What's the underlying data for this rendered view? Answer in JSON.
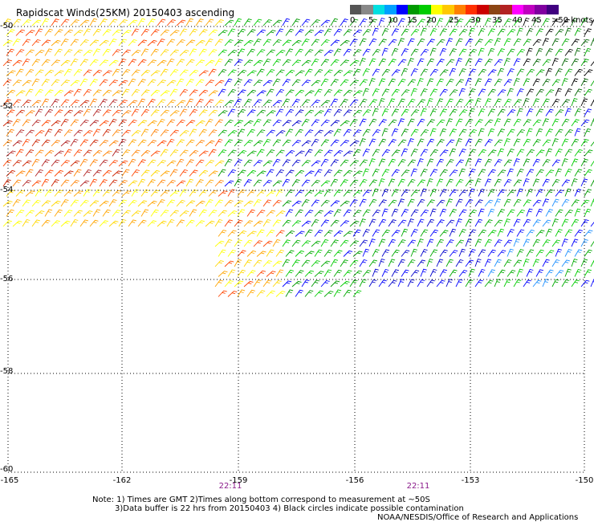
{
  "title": "Rapidscat Winds(25KM) 20150403 ascending",
  "color_scale": {
    "colors": [
      "#555555",
      "#888888",
      "#00e0e0",
      "#00a0ff",
      "#0000ff",
      "#009900",
      "#00cc00",
      "#ffff00",
      "#ffc800",
      "#ff8000",
      "#ff3000",
      "#cc0000",
      "#8b4513",
      "#b22222",
      "#ff00ff",
      "#c000c0",
      "#8000a0",
      "#400080"
    ],
    "labels": [
      "0",
      "5",
      "10",
      "15",
      "20",
      "25",
      "30",
      "35",
      "40",
      "45",
      ">50 knots"
    ]
  },
  "lat_labels": [
    "-50",
    "-52",
    "-54",
    "-56",
    "-58",
    "-60"
  ],
  "lon_labels": [
    "-165",
    "-162",
    "-159",
    "-156",
    "-153",
    "-150"
  ],
  "time_labels": [
    "22:11",
    "22:11"
  ],
  "notes": [
    "Note: 1) Times are GMT 2)Times along bottom correspond to measurement at ~50S",
    "3)Data buffer is 22 hrs from 20150403 4) Black circles indicate possible contamination",
    "NOAA/NESDIS/Office of Research and Applications"
  ]
}
